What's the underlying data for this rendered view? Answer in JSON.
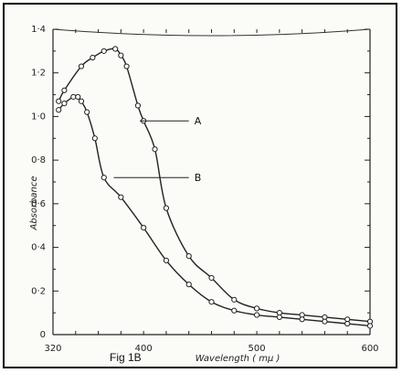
{
  "chart_data": {
    "type": "line",
    "caption": "Fig 1B",
    "xlabel": "Wavelength ( mμ )",
    "ylabel": "Absorbance",
    "xlim": [
      320,
      600
    ],
    "ylim": [
      0,
      1.4
    ],
    "x_ticks": [
      {
        "value": 320,
        "label": "320"
      },
      {
        "value": 400,
        "label": "400"
      },
      {
        "value": 500,
        "label": "500"
      },
      {
        "value": 600,
        "label": "600"
      }
    ],
    "y_ticks": [
      {
        "value": 0,
        "label": "0"
      },
      {
        "value": 0.2,
        "label": "0·2"
      },
      {
        "value": 0.4,
        "label": "0·4"
      },
      {
        "value": 0.6,
        "label": "0·6"
      },
      {
        "value": 0.8,
        "label": "0·8"
      },
      {
        "value": 1.0,
        "label": "1·0"
      },
      {
        "value": 1.2,
        "label": "1·2"
      },
      {
        "value": 1.4,
        "label": "1·4"
      }
    ],
    "series": [
      {
        "name": "A",
        "color": "#222222",
        "x": [
          325,
          330,
          345,
          355,
          365,
          375,
          380,
          385,
          395,
          400,
          410,
          420,
          440,
          460,
          480,
          500,
          520,
          540,
          560,
          580,
          600
        ],
        "y": [
          1.07,
          1.12,
          1.23,
          1.27,
          1.3,
          1.31,
          1.28,
          1.23,
          1.05,
          0.98,
          0.85,
          0.58,
          0.36,
          0.26,
          0.16,
          0.12,
          0.1,
          0.09,
          0.08,
          0.07,
          0.06
        ]
      },
      {
        "name": "B",
        "color": "#222222",
        "x": [
          325,
          330,
          338,
          342,
          345,
          350,
          357,
          365,
          380,
          400,
          420,
          440,
          460,
          480,
          500,
          520,
          540,
          560,
          580,
          600
        ],
        "y": [
          1.03,
          1.06,
          1.09,
          1.09,
          1.07,
          1.02,
          0.9,
          0.72,
          0.63,
          0.49,
          0.34,
          0.23,
          0.15,
          0.11,
          0.09,
          0.08,
          0.07,
          0.06,
          0.05,
          0.04
        ]
      }
    ],
    "grid": false,
    "legend": "inline labels"
  }
}
